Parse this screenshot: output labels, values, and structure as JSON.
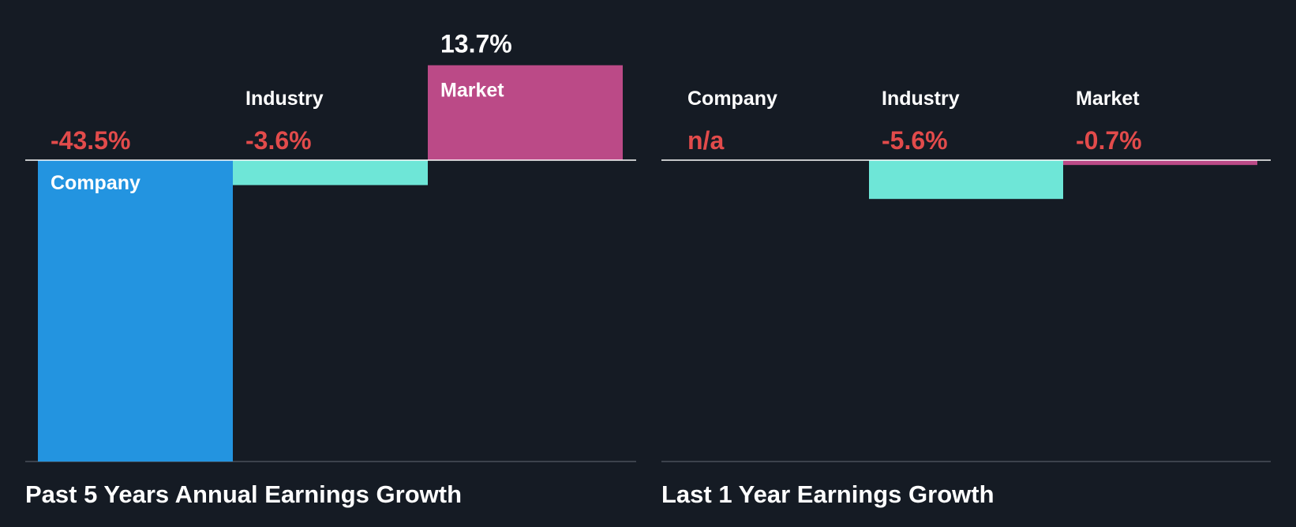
{
  "colors": {
    "background": "#151b24",
    "company": "#2394e0",
    "industry": "#6ee6d7",
    "market": "#bb4a87",
    "negative": "#e24b4b",
    "positive": "#ffffff"
  },
  "chart_data": [
    {
      "type": "bar",
      "title": "Past 5 Years Annual Earnings Growth",
      "categories": [
        "Company",
        "Industry",
        "Market"
      ],
      "values": [
        -43.5,
        -3.6,
        13.7
      ],
      "value_labels": [
        "-43.5%",
        "-3.6%",
        "13.7%"
      ],
      "ylim": [
        -43.5,
        13.7
      ],
      "grid": false
    },
    {
      "type": "bar",
      "title": "Last 1 Year Earnings Growth",
      "categories": [
        "Company",
        "Industry",
        "Market"
      ],
      "values": [
        null,
        -5.6,
        -0.7
      ],
      "value_labels": [
        "n/a",
        "-5.6%",
        "-0.7%"
      ],
      "ylim": [
        -43.5,
        13.7
      ],
      "grid": false
    }
  ]
}
